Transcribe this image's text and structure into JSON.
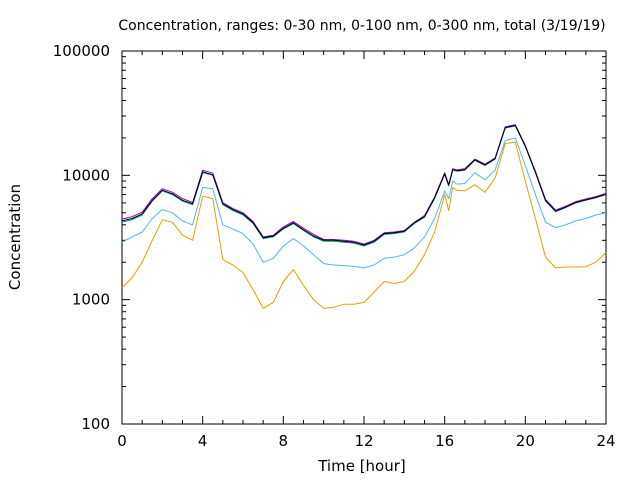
{
  "chart_data": {
    "type": "line",
    "title": "Concentration, ranges: 0-30 nm, 0-100 nm, 0-300 nm, total (3/19/19)",
    "xlabel": "Time [hour]",
    "ylabel": "Concentration",
    "xlim": [
      0,
      24
    ],
    "ylim": [
      100,
      100000
    ],
    "yscale": "log",
    "grid": false,
    "legend": "none",
    "xticks": [
      0,
      4,
      8,
      12,
      16,
      20,
      24
    ],
    "xtick_labels": [
      "0",
      "4",
      "8",
      "12",
      "16",
      "20",
      "24"
    ],
    "yticks": [
      100,
      1000,
      10000,
      100000
    ],
    "ytick_labels": [
      "100",
      "1000",
      "10000",
      "100000"
    ],
    "x": [
      0,
      0.5,
      1,
      1.5,
      2,
      2.5,
      3,
      3.5,
      4,
      4.5,
      5,
      5.5,
      6,
      6.5,
      7,
      7.5,
      8,
      8.5,
      9,
      9.5,
      10,
      10.5,
      11,
      11.5,
      12,
      12.5,
      13,
      13.5,
      14,
      14.5,
      15,
      15.5,
      16,
      16.2,
      16.4,
      16.6,
      17,
      17.5,
      18,
      18.5,
      19,
      19.5,
      20,
      20.5,
      21,
      21.5,
      22,
      22.5,
      23,
      23.5,
      24
    ],
    "series": [
      {
        "color": "#e69f00",
        "values": [
          1250,
          1500,
          2000,
          3000,
          4400,
          4200,
          3300,
          3000,
          6800,
          6500,
          2100,
          1900,
          1650,
          1200,
          850,
          950,
          1400,
          1750,
          1300,
          1000,
          850,
          870,
          920,
          920,
          950,
          1150,
          1400,
          1350,
          1400,
          1700,
          2300,
          3500,
          7000,
          5200,
          8000,
          7600,
          7500,
          8400,
          7300,
          9500,
          18000,
          18500,
          9000,
          4500,
          2200,
          1800,
          1830,
          1830,
          1840,
          2000,
          2400
        ]
      },
      {
        "color": "#56b4e9",
        "values": [
          2900,
          3200,
          3500,
          4500,
          5300,
          5000,
          4300,
          4000,
          8000,
          7800,
          4000,
          3700,
          3400,
          2800,
          2000,
          2150,
          2700,
          3100,
          2700,
          2300,
          1950,
          1900,
          1880,
          1850,
          1800,
          1900,
          2150,
          2200,
          2300,
          2600,
          3200,
          4500,
          7500,
          6500,
          9000,
          8500,
          8600,
          10500,
          9200,
          11000,
          19000,
          20000,
          12000,
          7000,
          4200,
          3800,
          4000,
          4300,
          4500,
          4800,
          5000
        ]
      },
      {
        "color": "#009e73",
        "values": [
          4200,
          4400,
          4800,
          6200,
          7500,
          7000,
          6200,
          5800,
          10500,
          10000,
          5800,
          5200,
          4800,
          4100,
          3100,
          3200,
          3700,
          4100,
          3600,
          3200,
          2950,
          2950,
          2900,
          2850,
          2700,
          2900,
          3350,
          3400,
          3500,
          4100,
          4600,
          6500,
          10200,
          8200,
          11000,
          10800,
          11000,
          13200,
          12000,
          13500,
          24000,
          25000,
          17000,
          10500,
          6200,
          5100,
          5500,
          6000,
          6300,
          6600,
          7000
        ]
      },
      {
        "color": "#9400d3",
        "values": [
          4450,
          4650,
          5050,
          6500,
          7800,
          7300,
          6500,
          6050,
          11000,
          10400,
          6050,
          5400,
          5000,
          4250,
          3200,
          3300,
          3850,
          4250,
          3750,
          3350,
          3050,
          3050,
          3000,
          2950,
          2800,
          3000,
          3450,
          3500,
          3600,
          4200,
          4750,
          6700,
          10500,
          8400,
          11300,
          11100,
          11300,
          13500,
          12300,
          13800,
          24500,
          25500,
          17400,
          10800,
          6400,
          5250,
          5650,
          6150,
          6450,
          6750,
          7150
        ]
      },
      {
        "color": "#000000",
        "values": [
          4300,
          4500,
          4900,
          6300,
          7600,
          7100,
          6300,
          5900,
          10700,
          10100,
          5900,
          5300,
          4900,
          4150,
          3150,
          3250,
          3750,
          4150,
          3650,
          3250,
          3000,
          3000,
          2950,
          2900,
          2750,
          2950,
          3400,
          3450,
          3550,
          4150,
          4650,
          6600,
          10300,
          8300,
          11100,
          10900,
          11100,
          13300,
          12100,
          13600,
          24200,
          25200,
          17200,
          10600,
          6300,
          5150,
          5550,
          6050,
          6350,
          6650,
          7050
        ]
      }
    ]
  }
}
